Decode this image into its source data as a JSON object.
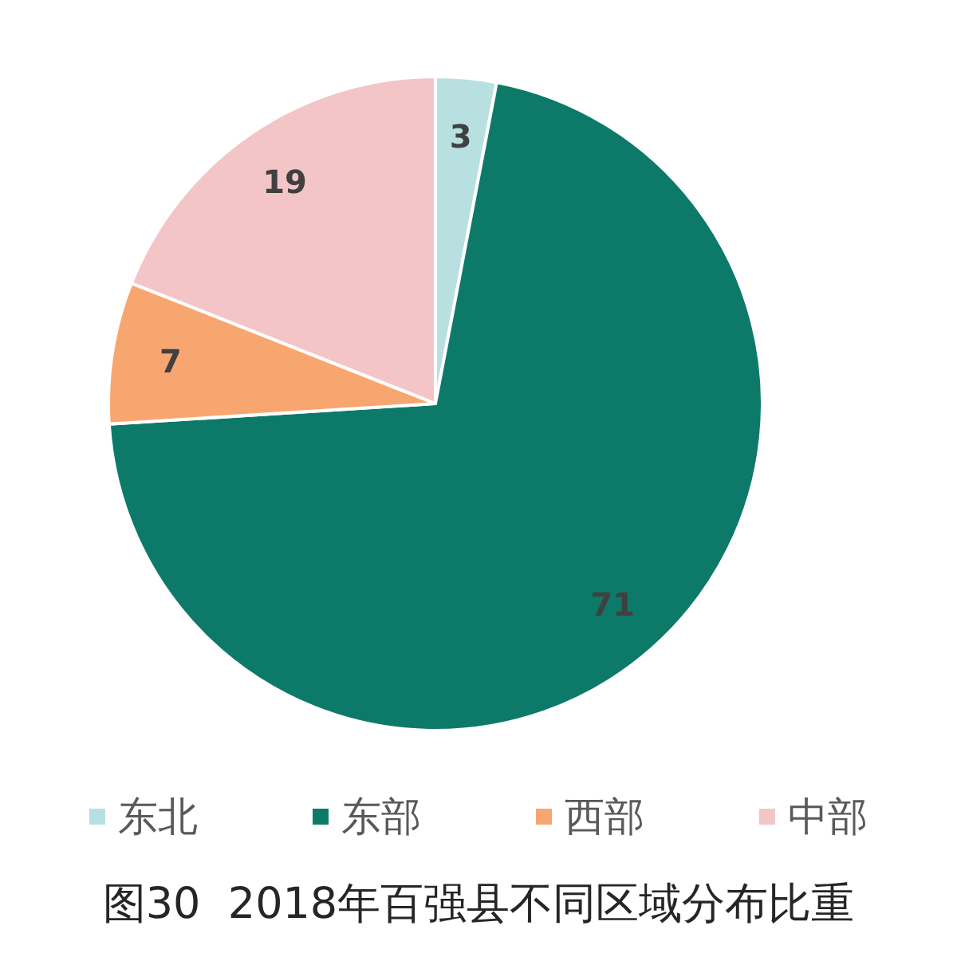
{
  "chart_data": {
    "type": "pie",
    "title": "图30  2018年百强县不同区域分布比重",
    "categories": [
      "东北",
      "东部",
      "西部",
      "中部"
    ],
    "values": [
      3,
      71,
      7,
      19
    ],
    "colors": [
      "#b9e0e0",
      "#0d7a69",
      "#f8a66f",
      "#f3c5c7"
    ],
    "data_labels": true,
    "legend": "bottom"
  }
}
